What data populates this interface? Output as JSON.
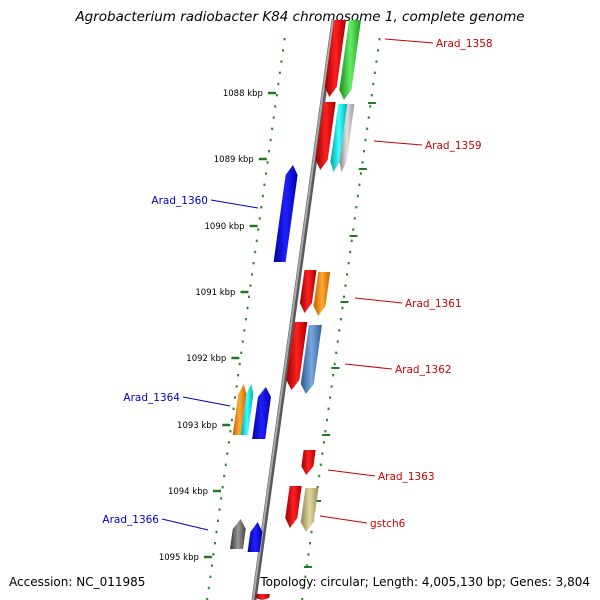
{
  "title": "Agrobacterium radiobacter K84 chromosome 1, complete genome",
  "footer": {
    "accession": "Accession: NC_011985",
    "summary": "Topology: circular; Length: 4,005,130 bp; Genes: 3,804"
  },
  "ticks": [
    {
      "label": "1088 kbp",
      "kbp": 1088
    },
    {
      "label": "1089 kbp",
      "kbp": 1089
    },
    {
      "label": "1090 kbp",
      "kbp": 1090
    },
    {
      "label": "1091 kbp",
      "kbp": 1091
    },
    {
      "label": "1092 kbp",
      "kbp": 1092
    },
    {
      "label": "1093 kbp",
      "kbp": 1093
    },
    {
      "label": "1094 kbp",
      "kbp": 1094
    },
    {
      "label": "1095 kbp",
      "kbp": 1095
    }
  ],
  "gene_labels": [
    {
      "name": "Arad_1358",
      "strand": "forward",
      "color": "#cc0000"
    },
    {
      "name": "Arad_1359",
      "strand": "forward",
      "color": "#cc0000"
    },
    {
      "name": "Arad_1360",
      "strand": "reverse",
      "color": "#0000cc"
    },
    {
      "name": "Arad_1361",
      "strand": "forward",
      "color": "#cc0000"
    },
    {
      "name": "Arad_1362",
      "strand": "forward",
      "color": "#cc0000"
    },
    {
      "name": "Arad_1364",
      "strand": "reverse",
      "color": "#0000cc"
    },
    {
      "name": "Arad_1363",
      "strand": "forward",
      "color": "#cc0000"
    },
    {
      "name": "gstch6",
      "strand": "forward",
      "color": "#cc0000"
    },
    {
      "name": "Arad_1366",
      "strand": "reverse",
      "color": "#0000cc"
    }
  ],
  "colors": {
    "backbone": "#8a8a8a",
    "tick": "#1f7a1f",
    "gene_red": "#ee0000",
    "gene_green": "#33cc33",
    "gene_cyan": "#00e5e5",
    "gene_grey": "#b0b0b0",
    "gene_blue": "#0000ee",
    "gene_orange": "#ff8c00",
    "gene_steel": "#4a7fbf",
    "gene_khaki": "#c8c080",
    "gene_dark": "#666666"
  }
}
